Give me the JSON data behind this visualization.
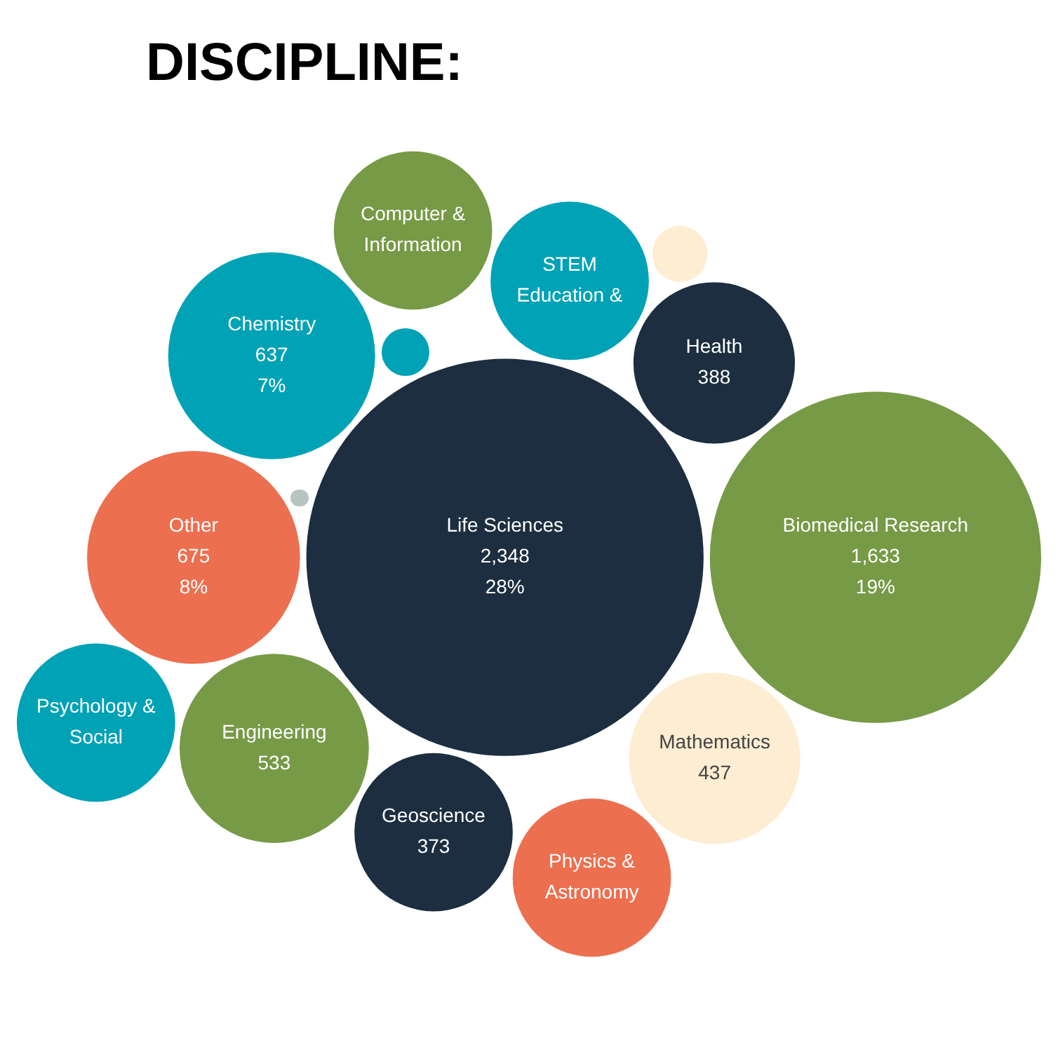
{
  "chart_data": {
    "type": "other",
    "title": "DISCIPLINE:",
    "categories": [
      "Life Sciences",
      "Biomedical Research",
      "Other",
      "Chemistry",
      "Engineering",
      "Mathematics",
      "Health",
      "Geoscience",
      "STEM Education &",
      "Physics & Astronomy",
      "Computer & Information",
      "Psychology & Social"
    ],
    "values": [
      2348,
      1633,
      675,
      637,
      533,
      437,
      388,
      373,
      null,
      null,
      null,
      null
    ],
    "value_labels": [
      "2,348\n28%",
      "1,633\n19%",
      "675\n8%",
      "637\n7%",
      "533",
      "437",
      "388",
      "373",
      null,
      null,
      null,
      null
    ],
    "colors": [
      "#1c2e40",
      "#769a46",
      "#ec6f4f",
      "#00a2b6",
      "#769a46",
      "#fdedd2",
      "#1c2e40",
      "#1c2e40",
      "#00a2b6",
      "#ec6f4f",
      "#769a46",
      "#00a2b6"
    ]
  }
}
